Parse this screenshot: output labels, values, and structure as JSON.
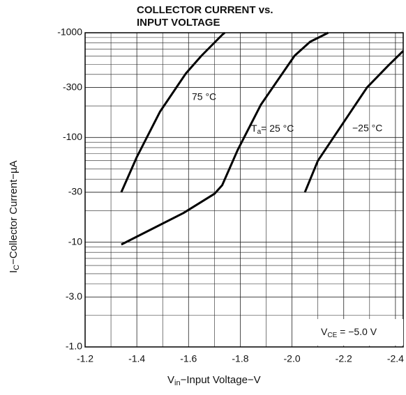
{
  "chart_data": {
    "type": "line",
    "title": [
      "COLLECTOR CURRENT vs.",
      "INPUT VOLTAGE"
    ],
    "x_label": {
      "main": "V",
      "sub": "in",
      "rest": "−Input Voltage−V"
    },
    "y_label": {
      "main": "I",
      "sub": "C",
      "rest": "−Collector Current−µA"
    },
    "log_y": true,
    "grid": true,
    "xlim": [
      -1.2,
      -2.43
    ],
    "ylim": [
      -1.0,
      -1000
    ],
    "xticks": [
      -1.2,
      -1.4,
      -1.6,
      -1.8,
      {
        "value": -2.0,
        "label": "-2.0"
      },
      -2.2,
      -2.4
    ],
    "yticks": [
      -1000,
      -300,
      -100,
      -30,
      -10,
      {
        "value": -3,
        "label": "-3.0"
      },
      {
        "value": -1,
        "label": "-1.0"
      }
    ],
    "series": [
      {
        "name": "75 °C",
        "color": "#000000",
        "x": [
          -1.34,
          -1.4,
          -1.49,
          -1.59,
          -1.65,
          -1.73,
          -1.74
        ],
        "values": [
          -30,
          -65,
          -177,
          -410,
          -603,
          -955,
          -1000
        ]
      },
      {
        "name": {
          "main": "T",
          "sub": "a",
          "rest": "= 25 °C"
        },
        "color": "#000000",
        "x": [
          -1.34,
          -1.58,
          -1.7,
          -1.73,
          -1.79,
          -1.88,
          -2.01,
          -2.07,
          -2.14
        ],
        "values": [
          -9.5,
          -19,
          -29,
          -35,
          -76,
          -206,
          -603,
          -820,
          -1000
        ]
      },
      {
        "name": "−25 °C",
        "color": "#000000",
        "x": [
          -2.05,
          -2.1,
          -2.2,
          -2.29,
          -2.37,
          -2.43
        ],
        "values": [
          -30,
          -60,
          -140,
          -300,
          -480,
          -670
        ]
      }
    ],
    "annotation": {
      "main": "V",
      "sub": "CE",
      "rest": " = −5.0 V"
    }
  }
}
